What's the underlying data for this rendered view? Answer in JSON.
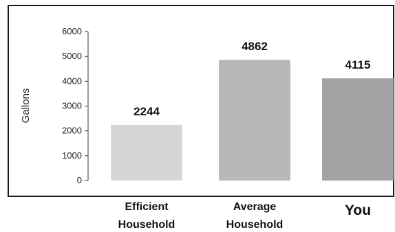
{
  "chart_data": {
    "type": "bar",
    "categories": [
      [
        "Efficient",
        "Household"
      ],
      [
        "Average",
        "Household"
      ],
      [
        "You"
      ]
    ],
    "values": [
      2244,
      4862,
      4115
    ],
    "value_labels": [
      "2244",
      "4862",
      "4115"
    ],
    "xlabel": "",
    "ylabel": "Gallons",
    "ylim": [
      0,
      6000
    ],
    "yticks": [
      "0",
      "1000",
      "2000",
      "3000",
      "4000",
      "5000",
      "6000"
    ],
    "colors": [
      "#d6d6d6",
      "#b8b8b8",
      "#a3a3a3"
    ],
    "grid": false,
    "legend": "none"
  }
}
